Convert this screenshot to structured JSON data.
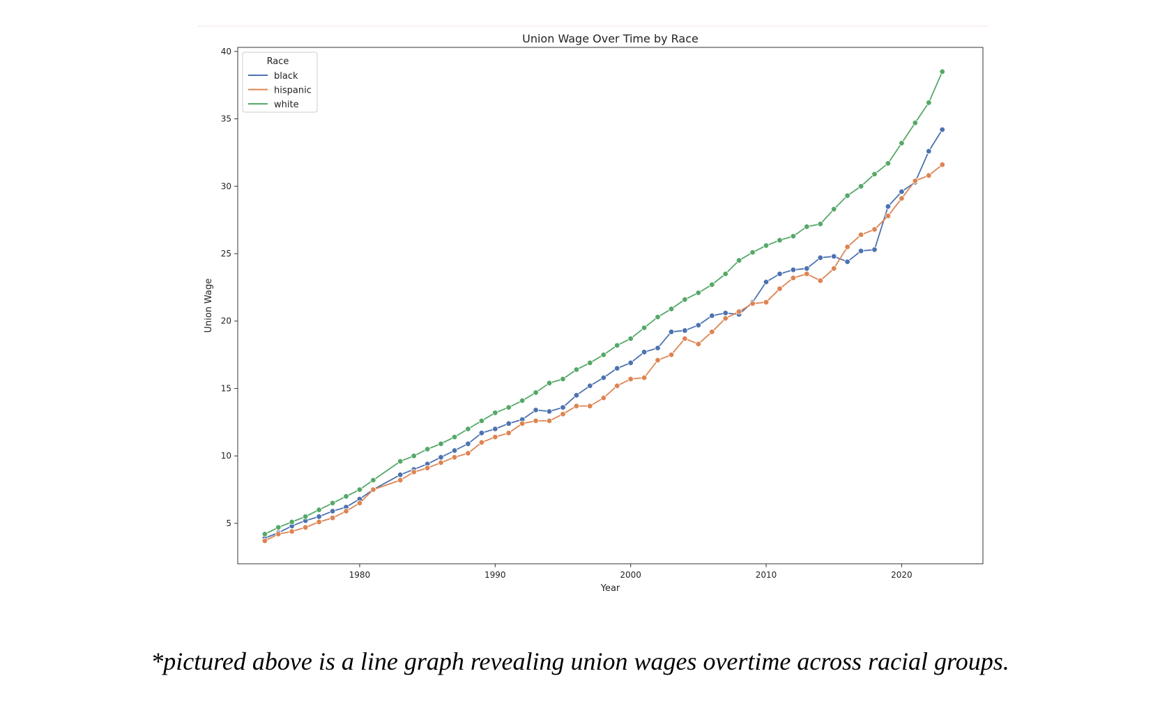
{
  "caption": "*pictured above is a line graph revealing union wages overtime across racial groups.",
  "chart_data": {
    "type": "line",
    "title": "Union Wage Over Time by Race",
    "xlabel": "Year",
    "ylabel": "Union Wage",
    "xlim": [
      1971,
      2026
    ],
    "ylim": [
      2,
      40.3
    ],
    "xticks": [
      1980,
      1990,
      2000,
      2010,
      2020
    ],
    "yticks": [
      5,
      10,
      15,
      20,
      25,
      30,
      35,
      40
    ],
    "grid": false,
    "legend": {
      "title": "Race",
      "placement": "top-left"
    },
    "x": [
      1973,
      1974,
      1975,
      1976,
      1977,
      1978,
      1979,
      1980,
      1981,
      1983,
      1984,
      1985,
      1986,
      1987,
      1988,
      1989,
      1990,
      1991,
      1992,
      1993,
      1994,
      1995,
      1996,
      1997,
      1998,
      1999,
      2000,
      2001,
      2002,
      2003,
      2004,
      2005,
      2006,
      2007,
      2008,
      2009,
      2010,
      2011,
      2012,
      2013,
      2014,
      2015,
      2016,
      2017,
      2018,
      2019,
      2020,
      2021,
      2022,
      2023
    ],
    "series": [
      {
        "name": "black",
        "color": "#4c72b0",
        "values": [
          3.9,
          4.3,
          4.8,
          5.2,
          5.5,
          5.9,
          6.2,
          6.8,
          7.5,
          8.6,
          9.0,
          9.4,
          9.9,
          10.4,
          10.9,
          11.7,
          12.0,
          12.4,
          12.7,
          13.4,
          13.3,
          13.6,
          14.5,
          15.2,
          15.8,
          16.5,
          16.9,
          17.7,
          18.0,
          19.2,
          19.3,
          19.7,
          20.4,
          20.6,
          20.5,
          21.4,
          22.9,
          23.5,
          23.8,
          23.9,
          24.7,
          24.8,
          24.4,
          25.2,
          25.3,
          28.5,
          29.6,
          30.3,
          32.6,
          34.2
        ]
      },
      {
        "name": "hispanic",
        "color": "#dd8452",
        "values": [
          3.7,
          4.2,
          4.4,
          4.7,
          5.1,
          5.4,
          5.9,
          6.5,
          7.5,
          8.2,
          8.8,
          9.1,
          9.5,
          9.9,
          10.2,
          11.0,
          11.4,
          11.7,
          12.4,
          12.6,
          12.6,
          13.1,
          13.7,
          13.7,
          14.3,
          15.2,
          15.7,
          15.8,
          17.1,
          17.5,
          18.7,
          18.3,
          19.2,
          20.2,
          20.7,
          21.3,
          21.4,
          22.4,
          23.2,
          23.5,
          23.0,
          23.9,
          25.5,
          26.4,
          26.8,
          27.8,
          29.1,
          30.4,
          30.8,
          31.6
        ]
      },
      {
        "name": "white",
        "color": "#55a868",
        "values": [
          4.2,
          4.7,
          5.1,
          5.5,
          6.0,
          6.5,
          7.0,
          7.5,
          8.2,
          9.6,
          10.0,
          10.5,
          10.9,
          11.4,
          12.0,
          12.6,
          13.2,
          13.6,
          14.1,
          14.7,
          15.4,
          15.7,
          16.4,
          16.9,
          17.5,
          18.2,
          18.7,
          19.5,
          20.3,
          20.9,
          21.6,
          22.1,
          22.7,
          23.5,
          24.5,
          25.1,
          25.6,
          26.0,
          26.3,
          27.0,
          27.2,
          28.3,
          29.3,
          30.0,
          30.9,
          31.7,
          33.2,
          34.7,
          36.2,
          38.5
        ]
      }
    ]
  }
}
